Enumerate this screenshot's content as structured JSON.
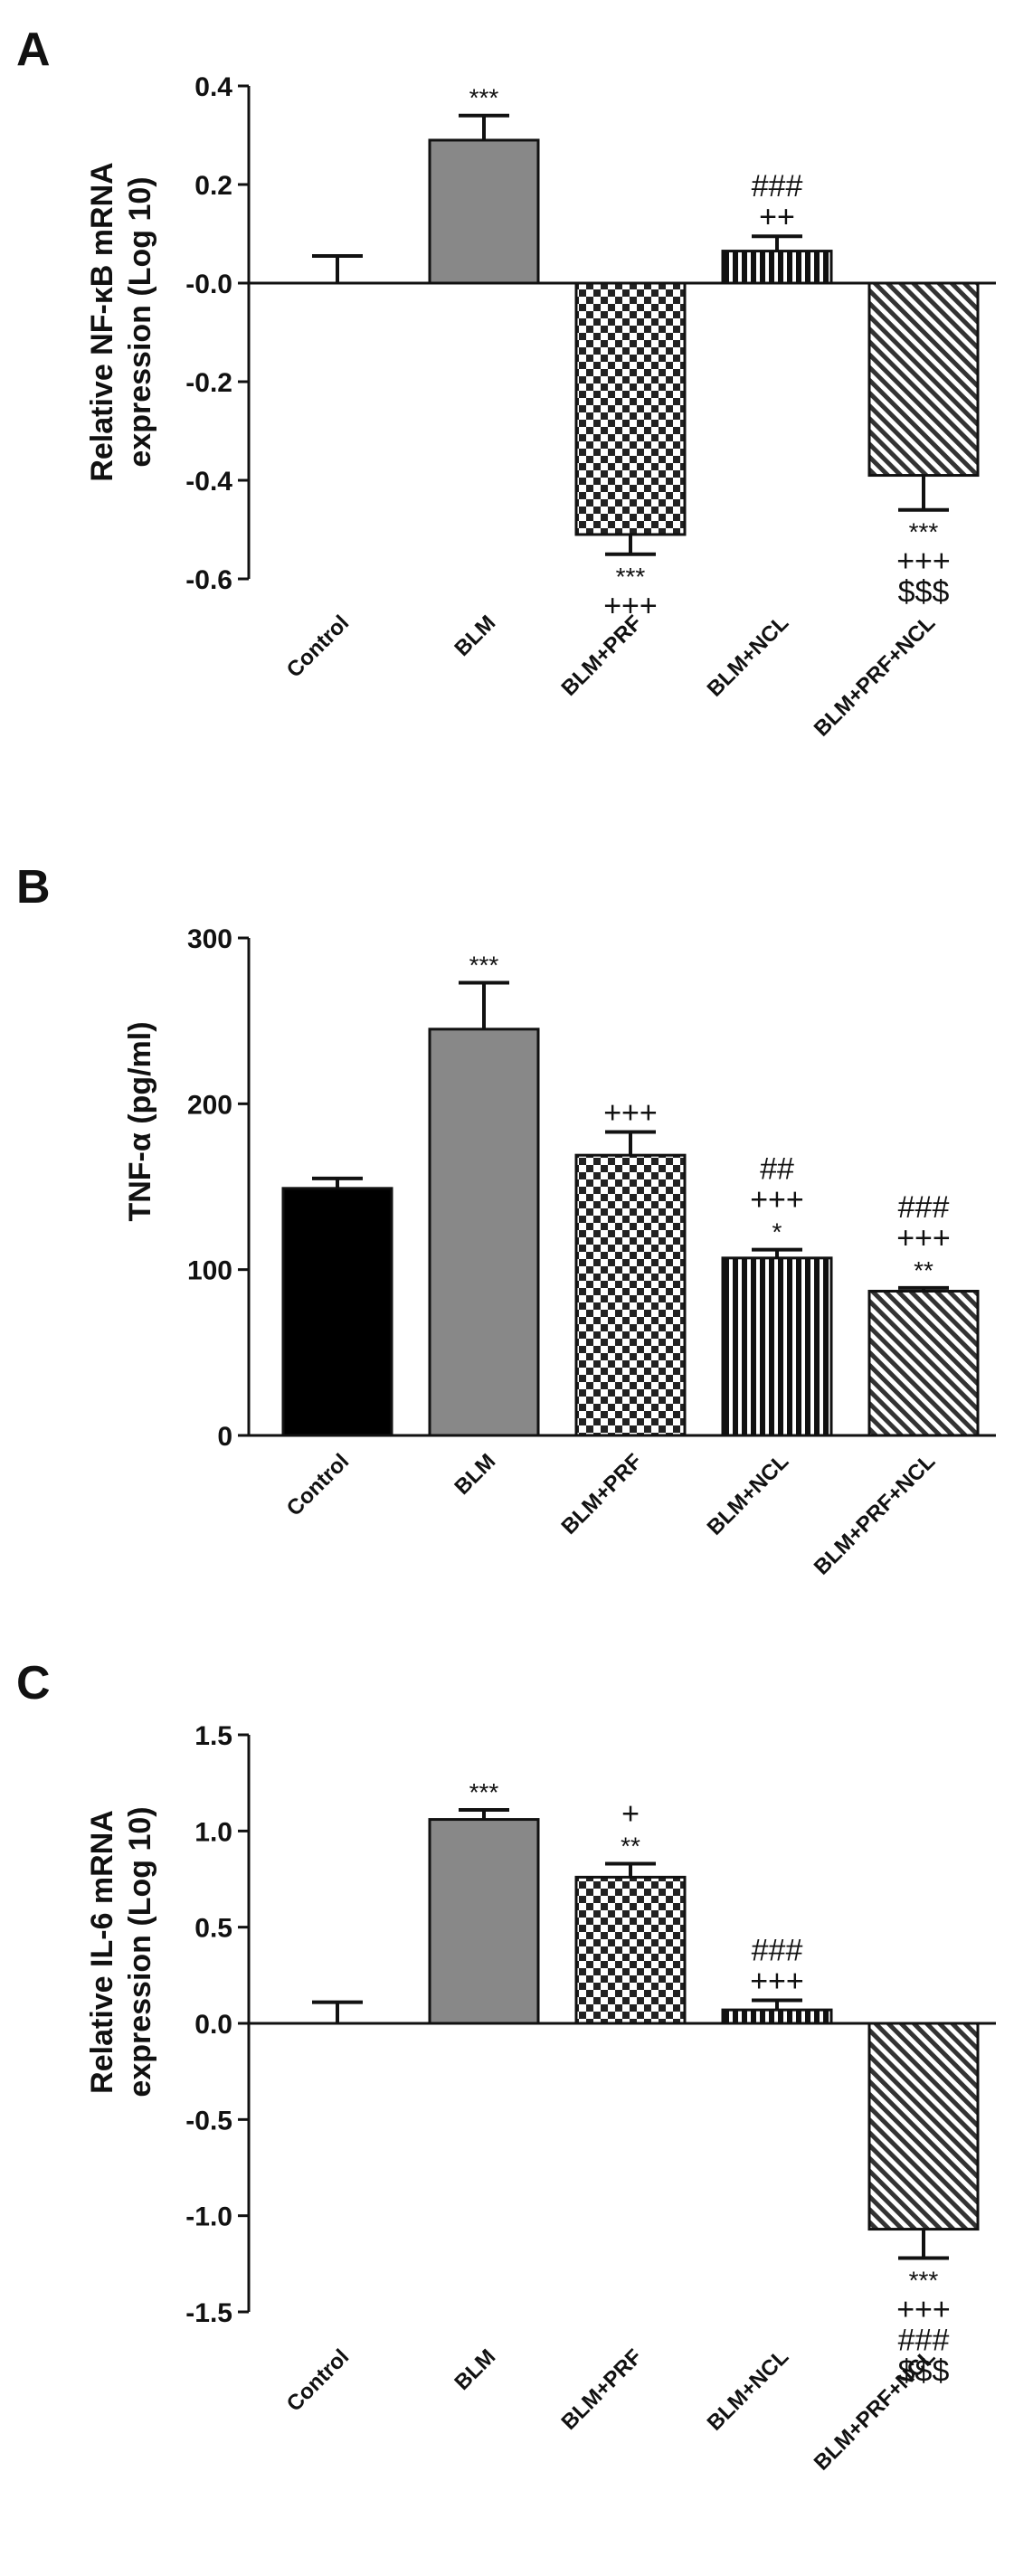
{
  "colors": {
    "axis": "#111111",
    "control": "#000000",
    "blm": "#888888",
    "pattern_ink": "#222222"
  },
  "chart_data": [
    {
      "panel": "A",
      "type": "bar",
      "title": "",
      "ylabel_lines": [
        "Relative NF-κB mRNA",
        "expression (Log 10)"
      ],
      "ylim": [
        -0.6,
        0.4
      ],
      "yticks": [
        0.4,
        0.2,
        0.0,
        -0.2,
        -0.4,
        -0.6
      ],
      "ytick_labels": [
        "0.4",
        "0.2",
        "-0.0",
        "-0.2",
        "-0.4",
        "-0.6"
      ],
      "categories": [
        "Control",
        "BLM",
        "BLM+PRF",
        "BLM+NCL",
        "BLM+PRF+NCL"
      ],
      "values": [
        0.0,
        0.29,
        -0.51,
        0.065,
        -0.39
      ],
      "errors": [
        0.055,
        0.05,
        0.04,
        0.03,
        0.07
      ],
      "fills": [
        "solid-black",
        "solid-gray",
        "checker",
        "vertical-stripes",
        "diagonal-stripes"
      ],
      "annotations": [
        [],
        [
          "***"
        ],
        [
          "***",
          "+++"
        ],
        [
          "###",
          "++"
        ],
        [
          "***",
          "+++",
          "$$$"
        ]
      ]
    },
    {
      "panel": "B",
      "type": "bar",
      "title": "",
      "ylabel_lines": [
        "TNF-α  (pg/ml)"
      ],
      "ylim": [
        0,
        300
      ],
      "yticks": [
        300,
        200,
        100,
        0
      ],
      "ytick_labels": [
        "300",
        "200",
        "100",
        "0"
      ],
      "categories": [
        "Control",
        "BLM",
        "BLM+PRF",
        "BLM+NCL",
        "BLM+PRF+NCL"
      ],
      "values": [
        149,
        245,
        169,
        107,
        87
      ],
      "errors": [
        6,
        28,
        14,
        5,
        2
      ],
      "fills": [
        "solid-black",
        "solid-gray",
        "checker",
        "vertical-stripes",
        "diagonal-stripes"
      ],
      "annotations": [
        [],
        [
          "***"
        ],
        [
          "+++"
        ],
        [
          "##",
          "+++",
          "*"
        ],
        [
          "###",
          "+++",
          "**"
        ]
      ]
    },
    {
      "panel": "C",
      "type": "bar",
      "title": "",
      "ylabel_lines": [
        "Relative IL-6 mRNA",
        "expression (Log 10)"
      ],
      "ylim": [
        -1.5,
        1.5
      ],
      "yticks": [
        1.5,
        1.0,
        0.5,
        0.0,
        -0.5,
        -1.0,
        -1.5
      ],
      "ytick_labels": [
        "1.5",
        "1.0",
        "0.5",
        "0.0",
        "-0.5",
        "-1.0",
        "-1.5"
      ],
      "categories": [
        "Control",
        "BLM",
        "BLM+PRF",
        "BLM+NCL",
        "BLM+PRF+NCL"
      ],
      "values": [
        0.0,
        1.06,
        0.76,
        0.07,
        -1.07
      ],
      "errors": [
        0.11,
        0.05,
        0.07,
        0.05,
        0.15
      ],
      "fills": [
        "solid-black",
        "solid-gray",
        "checker",
        "vertical-stripes",
        "diagonal-stripes"
      ],
      "annotations": [
        [],
        [
          "***"
        ],
        [
          "+",
          "**"
        ],
        [
          "###",
          "+++"
        ],
        [
          "***",
          "+++",
          "###",
          "$$$"
        ]
      ]
    }
  ]
}
